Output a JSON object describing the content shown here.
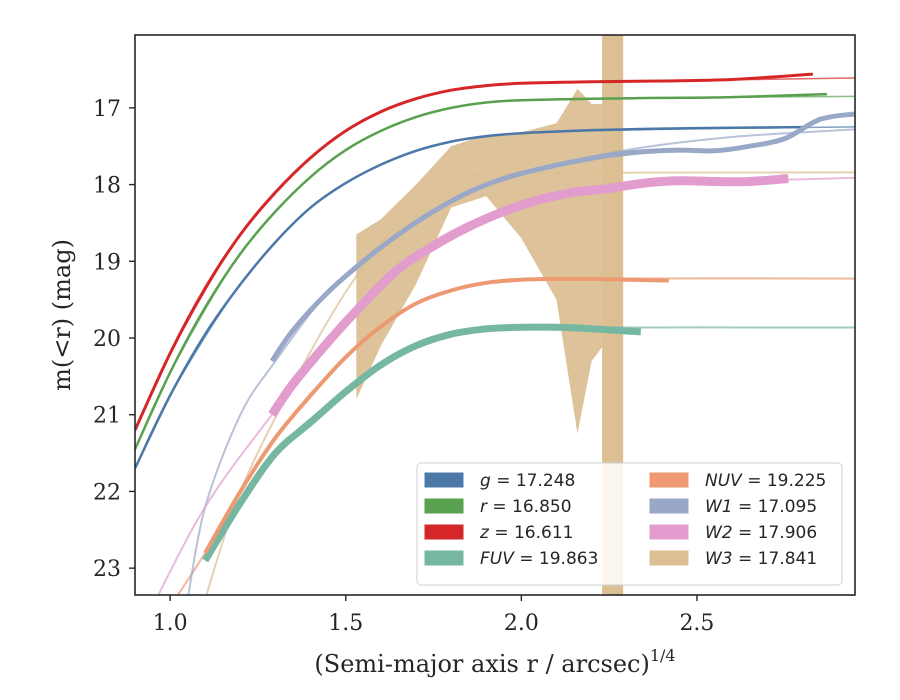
{
  "chart_data": {
    "type": "line",
    "title": "",
    "xlabel": "(Semi-major axis r / arcsec)",
    "xlabel_exponent": "1/4",
    "ylabel": "m(<r) (mag)",
    "xlim": [
      0.9,
      2.95
    ],
    "ylim": [
      23.35,
      16.05
    ],
    "y_inverted": true,
    "grid": false,
    "legend_position": "lower-right",
    "xticks": [
      1.0,
      1.5,
      2.0,
      2.5
    ],
    "xtick_labels": [
      "1.0",
      "1.5",
      "2.0",
      "2.5"
    ],
    "yticks": [
      17,
      18,
      19,
      20,
      21,
      22,
      23
    ],
    "ytick_labels": [
      "17",
      "18",
      "19",
      "20",
      "21",
      "22",
      "23"
    ],
    "legend_columns": 2,
    "series": [
      {
        "name": "g = 17.248",
        "band": "g",
        "total_mag": "17.248",
        "color": "#4c78a8",
        "x": [
          0.9,
          1.0,
          1.1,
          1.2,
          1.3,
          1.4,
          1.5,
          1.6,
          1.7,
          1.8,
          1.9,
          2.0,
          2.2,
          2.4,
          2.6,
          2.8
        ],
        "y": [
          21.7,
          20.75,
          19.95,
          19.3,
          18.75,
          18.3,
          17.98,
          17.74,
          17.56,
          17.44,
          17.37,
          17.33,
          17.29,
          17.27,
          17.26,
          17.25
        ],
        "model_x": [
          0.9,
          1.0,
          1.2,
          1.4,
          1.6,
          1.8,
          2.0,
          2.4,
          2.95
        ],
        "model_y": [
          21.7,
          20.75,
          19.3,
          18.3,
          17.74,
          17.44,
          17.33,
          17.28,
          17.248
        ]
      },
      {
        "name": "r = 16.850",
        "band": "r",
        "total_mag": "16.850",
        "color": "#59a14f",
        "x": [
          0.9,
          1.0,
          1.1,
          1.2,
          1.3,
          1.4,
          1.5,
          1.6,
          1.7,
          1.8,
          1.9,
          2.0,
          2.2,
          2.4,
          2.6,
          2.87
        ],
        "y": [
          21.45,
          20.45,
          19.6,
          18.9,
          18.35,
          17.9,
          17.55,
          17.3,
          17.12,
          17.0,
          16.93,
          16.9,
          16.88,
          16.87,
          16.86,
          16.82
        ],
        "model_x": [
          0.9,
          1.0,
          1.2,
          1.4,
          1.6,
          1.8,
          2.0,
          2.4,
          2.95
        ],
        "model_y": [
          21.45,
          20.45,
          18.9,
          17.9,
          17.3,
          17.0,
          16.9,
          16.87,
          16.85
        ]
      },
      {
        "name": "z = 16.611",
        "band": "z",
        "total_mag": "16.611",
        "color": "#d62728",
        "x": [
          0.9,
          1.0,
          1.1,
          1.2,
          1.3,
          1.4,
          1.5,
          1.6,
          1.7,
          1.8,
          1.9,
          2.0,
          2.2,
          2.4,
          2.6,
          2.83
        ],
        "y": [
          21.2,
          20.2,
          19.35,
          18.65,
          18.1,
          17.65,
          17.3,
          17.05,
          16.88,
          16.77,
          16.71,
          16.68,
          16.66,
          16.65,
          16.63,
          16.56
        ],
        "model_x": [
          0.9,
          1.0,
          1.2,
          1.4,
          1.6,
          1.8,
          2.0,
          2.4,
          2.95
        ],
        "model_y": [
          21.2,
          20.2,
          18.65,
          17.65,
          17.05,
          16.77,
          16.68,
          16.65,
          16.611
        ]
      },
      {
        "name": "FUV = 19.863",
        "band": "FUV",
        "total_mag": "19.863",
        "color": "#76b7a2",
        "x": [
          1.1,
          1.2,
          1.3,
          1.4,
          1.5,
          1.6,
          1.7,
          1.8,
          1.9,
          2.0,
          2.1,
          2.2,
          2.34
        ],
        "y": [
          22.9,
          22.15,
          21.5,
          21.1,
          20.7,
          20.35,
          20.1,
          19.95,
          19.88,
          19.86,
          19.86,
          19.88,
          19.92
        ],
        "model_x": [
          1.1,
          1.3,
          1.5,
          1.7,
          1.9,
          2.1,
          2.95
        ],
        "model_y": [
          22.9,
          21.5,
          20.7,
          20.1,
          19.88,
          19.863,
          19.863
        ]
      },
      {
        "name": "NUV = 19.225",
        "band": "NUV",
        "total_mag": "19.225",
        "color": "#ed9a73",
        "x": [
          1.1,
          1.2,
          1.3,
          1.4,
          1.5,
          1.6,
          1.7,
          1.8,
          1.9,
          2.0,
          2.1,
          2.2,
          2.3,
          2.42
        ],
        "y": [
          22.8,
          22.0,
          21.3,
          20.75,
          20.25,
          19.85,
          19.55,
          19.38,
          19.28,
          19.24,
          19.23,
          19.23,
          19.24,
          19.25
        ],
        "model_x": [
          1.0,
          1.1,
          1.3,
          1.5,
          1.7,
          1.9,
          2.1,
          2.95
        ],
        "model_y": [
          23.5,
          22.8,
          21.3,
          20.25,
          19.55,
          19.28,
          19.225,
          19.225
        ]
      },
      {
        "name": "W1 = 17.095",
        "band": "W1",
        "total_mag": "17.095",
        "color": "#9aa8c8",
        "x": [
          1.29,
          1.35,
          1.45,
          1.55,
          1.65,
          1.75,
          1.85,
          1.95,
          2.05,
          2.15,
          2.25,
          2.35,
          2.45,
          2.55,
          2.65,
          2.75,
          2.85,
          2.95
        ],
        "y": [
          20.3,
          19.9,
          19.4,
          19.0,
          18.65,
          18.35,
          18.1,
          17.92,
          17.8,
          17.7,
          17.62,
          17.57,
          17.55,
          17.56,
          17.5,
          17.4,
          17.15,
          17.08
        ],
        "model_x": [
          1.05,
          1.1,
          1.2,
          1.3,
          1.45,
          1.6,
          1.8,
          2.0,
          2.3,
          2.6,
          2.95
        ],
        "model_y": [
          23.4,
          22.2,
          21.0,
          20.3,
          19.4,
          18.8,
          18.2,
          17.85,
          17.55,
          17.38,
          17.28
        ]
      },
      {
        "name": "W2 = 17.906",
        "band": "W2",
        "total_mag": "17.906",
        "color": "#e29ccd",
        "x": [
          1.29,
          1.35,
          1.45,
          1.55,
          1.65,
          1.75,
          1.85,
          1.95,
          2.05,
          2.15,
          2.25,
          2.35,
          2.45,
          2.55,
          2.65,
          2.76
        ],
        "y": [
          21.0,
          20.6,
          20.05,
          19.55,
          19.1,
          18.8,
          18.55,
          18.35,
          18.2,
          18.1,
          18.05,
          17.98,
          17.95,
          17.96,
          17.96,
          17.92
        ],
        "model_x": [
          0.95,
          1.1,
          1.29,
          1.5,
          1.7,
          1.9,
          2.1,
          2.4,
          2.95
        ],
        "model_y": [
          23.5,
          22.2,
          21.0,
          19.8,
          18.9,
          18.4,
          18.15,
          18.0,
          17.91
        ]
      },
      {
        "name": "W3 = 17.841",
        "band": "W3",
        "total_mag": "17.841",
        "color": "#dcbf93",
        "x": [
          1.53,
          1.6,
          1.7,
          1.8,
          1.9,
          2.0,
          2.1,
          2.16,
          2.2,
          2.25
        ],
        "y_upper": [
          18.65,
          18.45,
          18.0,
          17.5,
          17.35,
          17.32,
          17.2,
          16.75,
          16.95,
          16.95
        ],
        "y_lower": [
          20.8,
          20.1,
          19.3,
          18.3,
          18.15,
          18.7,
          19.5,
          21.25,
          20.3,
          20.0
        ],
        "band_x_range": [
          2.23,
          2.29
        ],
        "model_x": [
          1.1,
          1.2,
          1.35,
          1.5,
          1.65,
          1.8,
          2.0,
          2.3,
          2.95
        ],
        "model_y": [
          23.4,
          22.0,
          20.6,
          19.4,
          18.5,
          17.95,
          17.85,
          17.845,
          17.841
        ]
      }
    ]
  },
  "legend": [
    {
      "band": "g",
      "value": "= 17.248",
      "color": "#4c78a8"
    },
    {
      "band": "r",
      "value": "= 16.850",
      "color": "#59a14f"
    },
    {
      "band": "z",
      "value": "= 16.611",
      "color": "#d62728"
    },
    {
      "band": "FUV",
      "value": "= 19.863",
      "color": "#76b7a2"
    },
    {
      "band": "NUV",
      "value": "= 19.225",
      "color": "#ed9a73"
    },
    {
      "band": "W1",
      "value": "= 17.095",
      "color": "#9aa8c8"
    },
    {
      "band": "W2",
      "value": "= 17.906",
      "color": "#e29ccd"
    },
    {
      "band": "W3",
      "value": "= 17.841",
      "color": "#dcbf93"
    }
  ],
  "colors": {
    "axis": "#262626",
    "background": "#ffffff"
  }
}
